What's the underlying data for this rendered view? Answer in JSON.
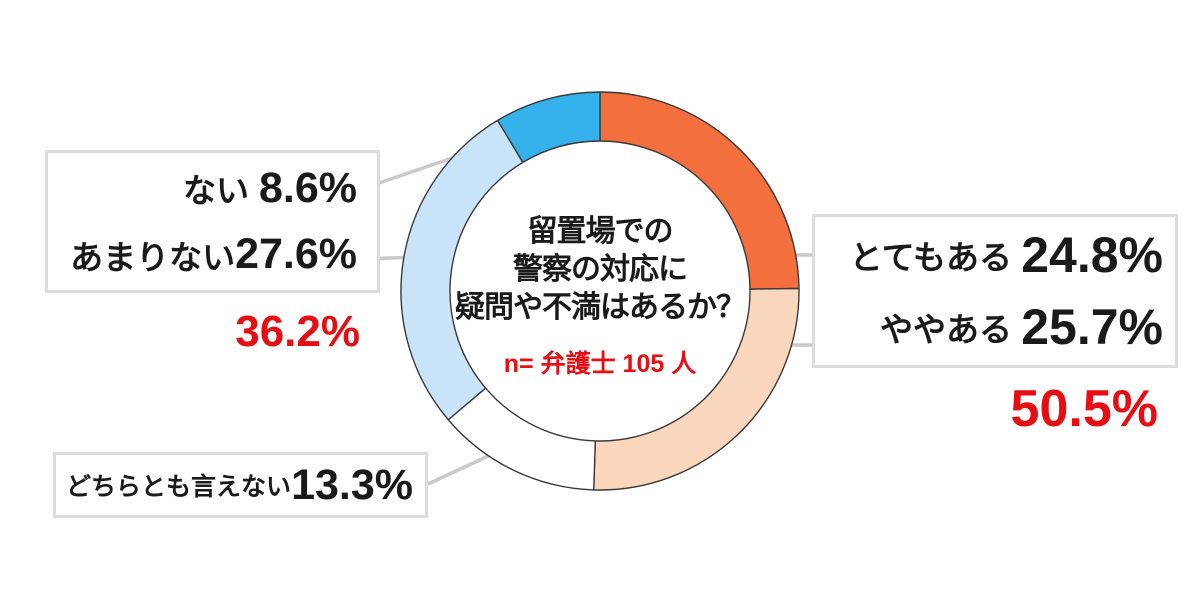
{
  "chart_data": {
    "type": "pie",
    "subtype": "donut",
    "title": "留置場での警察の対応に疑問や不満はあるか？",
    "title_lines": [
      "留置場での",
      "警察の対応に",
      "疑問や不満はあるか？"
    ],
    "sample_note": "n= 弁護士 105 人",
    "unit": "%",
    "start_angle": "12-oclock",
    "direction": "clockwise",
    "categories": [
      "とてもある",
      "ややある",
      "どちらとも言えない",
      "あまりない",
      "ない"
    ],
    "values": [
      24.8,
      25.7,
      13.3,
      27.6,
      8.6
    ],
    "segments": [
      {
        "id": "totemo-aru",
        "label": "とてもある",
        "value": 24.8,
        "display": "24.8%",
        "color": "#f3703e"
      },
      {
        "id": "yaya-aru",
        "label": "ややある",
        "value": 25.7,
        "display": "25.7%",
        "color": "#fad6bc"
      },
      {
        "id": "dochira-tomo-ienai",
        "label": "どちらとも言えない",
        "value": 13.3,
        "display": "13.3%",
        "color": "#ffffff"
      },
      {
        "id": "amari-nai",
        "label": "あまりない",
        "value": 27.6,
        "display": "27.6%",
        "color": "#c9e4f8"
      },
      {
        "id": "nai",
        "label": "ない",
        "value": 8.6,
        "display": "8.6%",
        "color": "#35b1ec"
      }
    ],
    "group_totals": [
      {
        "of": "とてもある + ややある",
        "display": "50.5%"
      },
      {
        "of": "ない + あまりない",
        "display": "36.2%"
      }
    ],
    "outline_color": "#3a3a3a",
    "leader_line_color": "#c9c9c9",
    "legend_position": "callout-boxes"
  },
  "positive_box": {
    "rows": [
      {
        "label": "とてもある",
        "value": "24.8%"
      },
      {
        "label": "ややある",
        "value": "25.7%"
      }
    ],
    "total": "50.5%"
  },
  "negative_box": {
    "rows": [
      {
        "label": "ない",
        "value": "8.6%"
      },
      {
        "label": "あまりない",
        "value": "27.6%"
      }
    ],
    "total": "36.2%"
  },
  "neutral_box": {
    "label": "どちらとも言えない",
    "value": "13.3%"
  },
  "colors": {
    "accent_red": "#e60e13",
    "box_border": "#dcdcdc",
    "text": "#1a1a1a",
    "background": "#ffffff"
  }
}
